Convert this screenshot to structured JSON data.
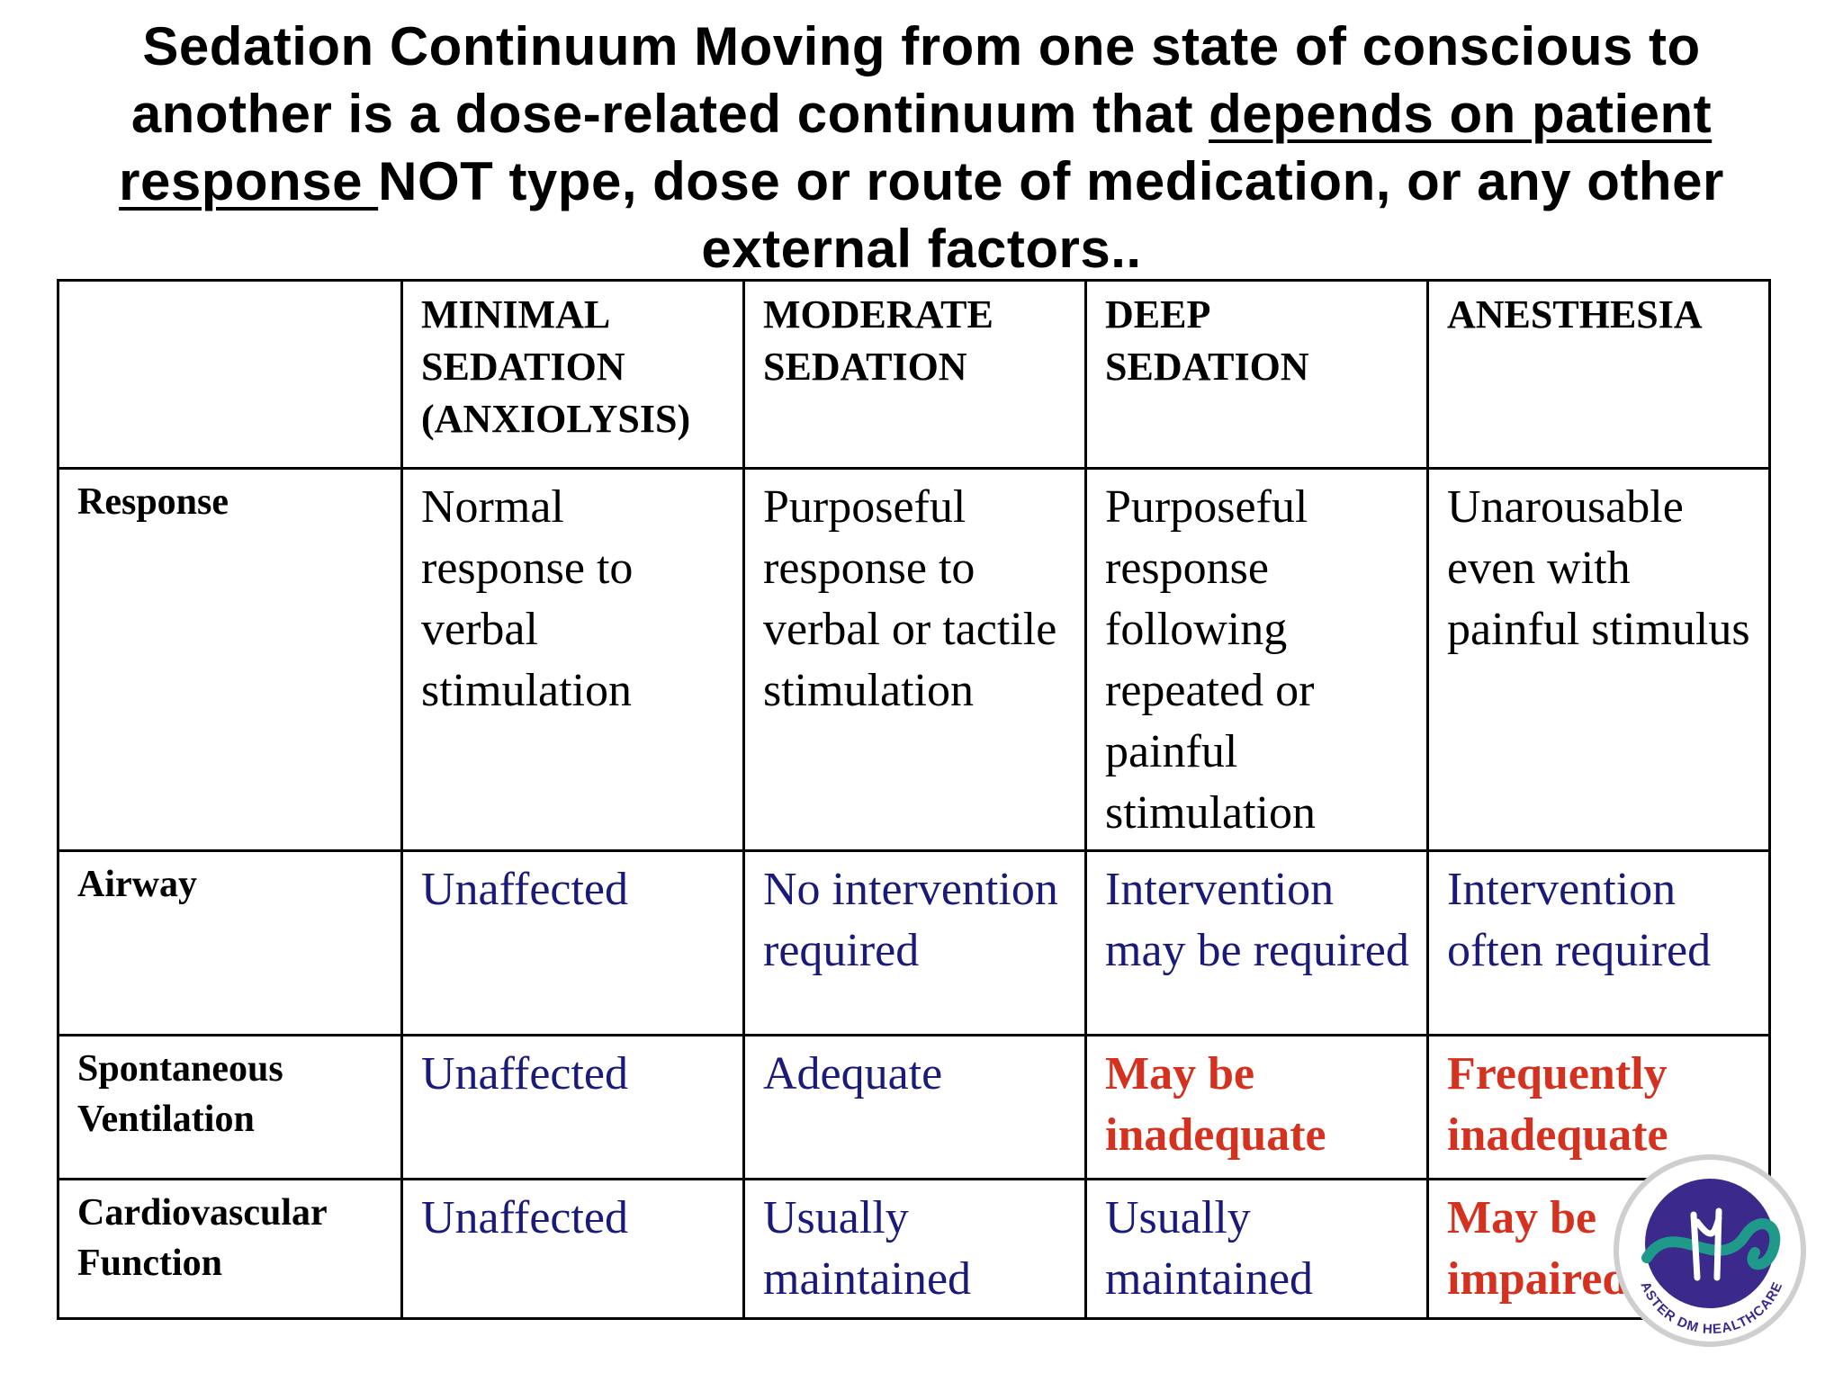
{
  "title": {
    "part1": "Sedation Continuum  Moving from one state of conscious to another is a dose-related continuum that ",
    "underlined1": "depends on patient",
    "underlined2": "response ",
    "part2": "NOT type, dose or  route of medication, or any other external factors.."
  },
  "table": {
    "headers": [
      "",
      "MINIMAL SEDATION (ANXIOLYSIS)",
      "MODERATE SEDATION",
      "DEEP SEDATION",
      "ANESTHESIA"
    ],
    "rows": [
      {
        "label": "Response",
        "cells": [
          "Normal response to verbal stimulation",
          "Purposeful response to verbal or tactile stimulation",
          "Purposeful response following  repeated or painful stimulation",
          "Unarousable even  with painful stimulus"
        ]
      },
      {
        "label": "Airway",
        "cells": [
          "Unaffected",
          "No intervention required",
          "Intervention may be required",
          "Intervention often required"
        ]
      },
      {
        "label": "Spontaneous Ventilation",
        "cells": [
          "Unaffected",
          "Adequate",
          "May be inadequate",
          "Frequently inadequate"
        ]
      },
      {
        "label": "Cardiovascular Function",
        "cells": [
          "Unaffected",
          "Usually maintained",
          "Usually maintained",
          "May be impaired"
        ]
      }
    ]
  },
  "logo": {
    "text": "ASTER DM HEALTHCARE",
    "colors": {
      "circle": "#3b2a8c",
      "swoosh": "#1f9a8a",
      "ring": "#cfcfcf"
    }
  }
}
